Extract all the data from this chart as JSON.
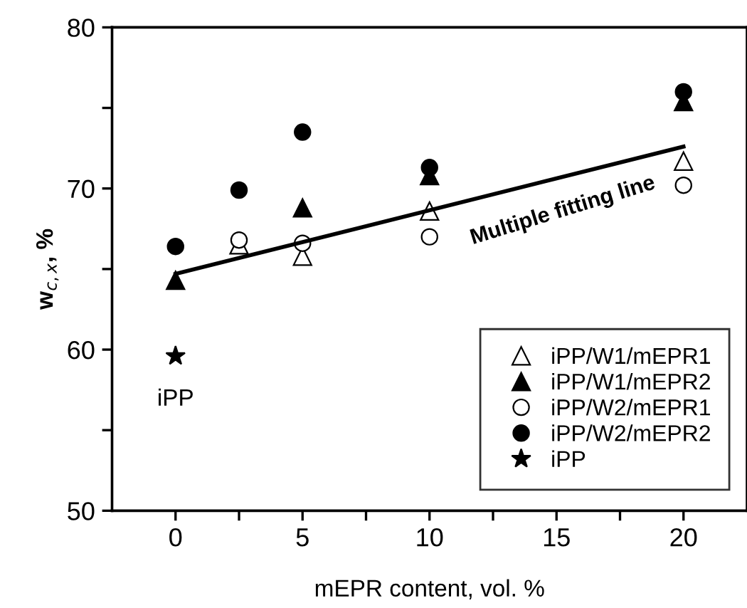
{
  "chart_data": {
    "type": "scatter",
    "xlabel": "mEPR content, vol. %",
    "ylabel": "w$_{c,x}$, %",
    "xlim": [
      -2.5,
      22.5
    ],
    "ylim": [
      50,
      80
    ],
    "xticks": [
      0,
      {
        "value": 2.5,
        "label": null
      },
      5,
      {
        "value": 7.5,
        "label": null
      },
      10,
      {
        "value": 12.5,
        "label": null
      },
      15,
      {
        "value": 17.5,
        "label": null
      },
      20
    ],
    "yticks": [
      50,
      {
        "value": 55,
        "label": null
      },
      60,
      {
        "value": 65,
        "label": null
      },
      70,
      {
        "value": 75,
        "label": null
      },
      80
    ],
    "grid": false,
    "legend": "bottom right",
    "series": [
      {
        "name": "iPP/W1/mEPR1",
        "color": "#ffffff",
        "marker": "triangle",
        "x": [
          2.5,
          5,
          10,
          20
        ],
        "values": [
          66.5,
          65.8,
          68.6,
          71.7
        ]
      },
      {
        "name": "iPP/W1/mEPR2",
        "color": "#000000",
        "marker": "triangle",
        "x": [
          0,
          5,
          10,
          20
        ],
        "values": [
          64.3,
          68.8,
          70.8,
          75.4
        ]
      },
      {
        "name": "iPP/W2/mEPR1",
        "color": "#ffffff",
        "marker": "circle",
        "x": [
          2.5,
          5,
          10,
          20
        ],
        "values": [
          66.8,
          66.6,
          67.0,
          70.2
        ]
      },
      {
        "name": "iPP/W2/mEPR2",
        "color": "#000000",
        "marker": "circle",
        "x": [
          0,
          2.5,
          5,
          10,
          20
        ],
        "values": [
          66.4,
          69.9,
          73.5,
          71.3,
          76.0
        ]
      },
      {
        "name": "iPP",
        "color": "#000000",
        "marker": "star",
        "x": [
          0
        ],
        "values": [
          59.6
        ]
      },
      {
        "type": "line",
        "color": "#000000",
        "marker": "none",
        "x": [
          0,
          20
        ],
        "values": [
          64.7,
          72.6
        ]
      }
    ],
    "annotations": [
      {
        "text": "iPP",
        "x": 0,
        "y": 59.6
      },
      "Multiple fitting line"
    ]
  }
}
